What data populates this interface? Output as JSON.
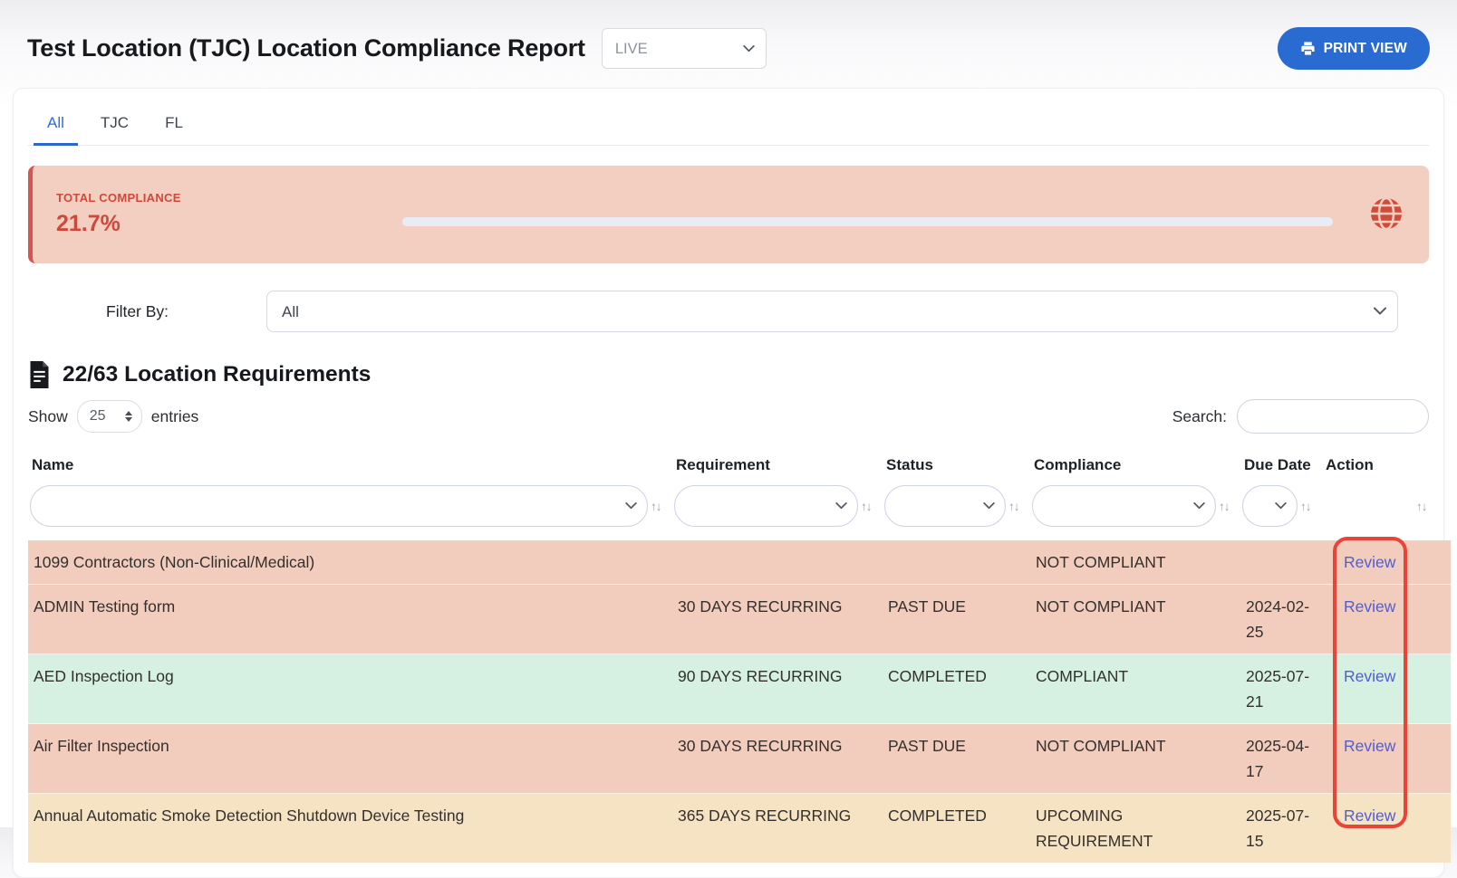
{
  "header": {
    "title": "Test Location (TJC) Location Compliance Report",
    "mode_value": "LIVE",
    "print_label": "PRINT VIEW"
  },
  "tabs": [
    {
      "label": "All",
      "active": true
    },
    {
      "label": "TJC",
      "active": false
    },
    {
      "label": "FL",
      "active": false
    }
  ],
  "compliance_banner": {
    "label": "TOTAL COMPLIANCE",
    "value": "21.7%"
  },
  "filter": {
    "label": "Filter By:",
    "value": "All"
  },
  "requirements": {
    "heading": "22/63 Location Requirements"
  },
  "table_controls": {
    "show_label": "Show",
    "page_size": "25",
    "entries_label": "entries",
    "search_label": "Search:",
    "search_value": ""
  },
  "table": {
    "columns": [
      {
        "label": "Name",
        "has_filter": true
      },
      {
        "label": "Requirement",
        "has_filter": true
      },
      {
        "label": "Status",
        "has_filter": true
      },
      {
        "label": "Compliance",
        "has_filter": true
      },
      {
        "label": "Due Date",
        "has_filter": true
      },
      {
        "label": "Action",
        "has_filter": false
      }
    ],
    "rows": [
      {
        "name": "1099 Contractors (Non-Clinical/Medical)",
        "requirement": "",
        "status": "",
        "compliance": "NOT COMPLIANT",
        "due_date": "",
        "action": "Review",
        "variant": "danger"
      },
      {
        "name": "ADMIN Testing form",
        "requirement": "30 DAYS RECURRING",
        "status": "PAST DUE",
        "compliance": "NOT COMPLIANT",
        "due_date": "2024-02-25",
        "action": "Review",
        "variant": "danger"
      },
      {
        "name": "AED Inspection Log",
        "requirement": "90 DAYS RECURRING",
        "status": "COMPLETED",
        "compliance": "COMPLIANT",
        "due_date": "2025-07-21",
        "action": "Review",
        "variant": "success"
      },
      {
        "name": "Air Filter Inspection",
        "requirement": "30 DAYS RECURRING",
        "status": "PAST DUE",
        "compliance": "NOT COMPLIANT",
        "due_date": "2025-04-17",
        "action": "Review",
        "variant": "danger"
      },
      {
        "name": "Annual Automatic Smoke Detection Shutdown Device Testing",
        "requirement": "365 DAYS RECURRING",
        "status": "COMPLETED",
        "compliance": "UPCOMING REQUIREMENT",
        "due_date": "2025-07-15",
        "action": "Review",
        "variant": "warning"
      }
    ]
  },
  "colors": {
    "accent_blue": "#2a6bd1",
    "alert_red": "#d0483a",
    "alert_bg": "#f3cfc1",
    "alert_border": "#d9534f",
    "progress_track": "#e9ecf4",
    "danger_bg": "#f2cdbd",
    "success_bg": "#d6f0e1",
    "warning_bg": "#f5e3c3",
    "link_blue": "#4f5ed2",
    "highlight_red": "#ea4338"
  }
}
